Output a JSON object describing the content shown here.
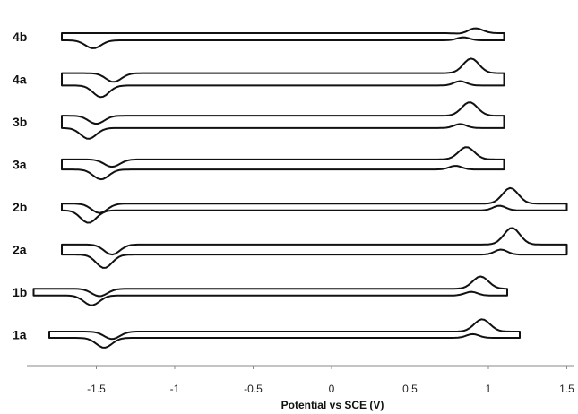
{
  "chart_data": {
    "type": "line",
    "title": "",
    "xlabel": "Potential vs SCE (V)",
    "ylabel": "",
    "xlim": [
      -1.9,
      1.55
    ],
    "x_ticks": [
      "-1.5",
      "-1",
      "-0.5",
      "0",
      "0.5",
      "1",
      "1.5"
    ],
    "x_tick_values": [
      -1.5,
      -1,
      -0.5,
      0,
      0.5,
      1,
      1.5
    ],
    "y_scale": "stacked traces, no printed y values",
    "grid": false,
    "legend": "none; each trace labelled at left",
    "series": [
      {
        "name": "4b",
        "x_start": -1.72,
        "x_end": 1.1,
        "cathodic_peak": -1.52,
        "anodic_peak": 0.88,
        "ox_peak": 0.9,
        "red_peak": 0.84,
        "peak_height": 0.45,
        "gap": 0.32,
        "offset": 8
      },
      {
        "name": "4a",
        "x_start": -1.72,
        "x_end": 1.1,
        "cathodic_peak": -1.47,
        "anodic_peak": -1.39,
        "ox_peak": 0.89,
        "red_peak": 0.82,
        "peak_height": 0.65,
        "gap": 0.55,
        "offset": 7
      },
      {
        "name": "3b",
        "x_start": -1.72,
        "x_end": 1.1,
        "cathodic_peak": -1.55,
        "anodic_peak": -1.5,
        "ox_peak": 0.88,
        "red_peak": 0.82,
        "peak_height": 0.6,
        "gap": 0.55,
        "offset": 6
      },
      {
        "name": "3a",
        "x_start": -1.72,
        "x_end": 1.1,
        "cathodic_peak": -1.47,
        "anodic_peak": -1.4,
        "ox_peak": 0.86,
        "red_peak": 0.79,
        "peak_height": 0.55,
        "gap": 0.45,
        "offset": 5
      },
      {
        "name": "2b",
        "x_start": -1.72,
        "x_end": 1.5,
        "cathodic_peak": -1.55,
        "anodic_peak": -1.48,
        "ox_peak": 1.14,
        "red_peak": 1.07,
        "peak_height": 0.7,
        "gap": 0.3,
        "offset": 4
      },
      {
        "name": "2a",
        "x_start": -1.72,
        "x_end": 1.5,
        "cathodic_peak": -1.45,
        "anodic_peak": -1.4,
        "ox_peak": 1.15,
        "red_peak": 1.08,
        "peak_height": 0.75,
        "gap": 0.45,
        "offset": 3
      },
      {
        "name": "1b",
        "x_start": -1.9,
        "x_end": 1.12,
        "cathodic_peak": -1.53,
        "anodic_peak": -1.48,
        "ox_peak": 0.95,
        "red_peak": 0.89,
        "peak_height": 0.55,
        "gap": 0.3,
        "offset": 2
      },
      {
        "name": "1a",
        "x_start": -1.8,
        "x_end": 1.2,
        "cathodic_peak": -1.45,
        "anodic_peak": -1.4,
        "ox_peak": 0.96,
        "red_peak": 0.9,
        "peak_height": 0.55,
        "gap": 0.28,
        "offset": 1
      }
    ]
  }
}
